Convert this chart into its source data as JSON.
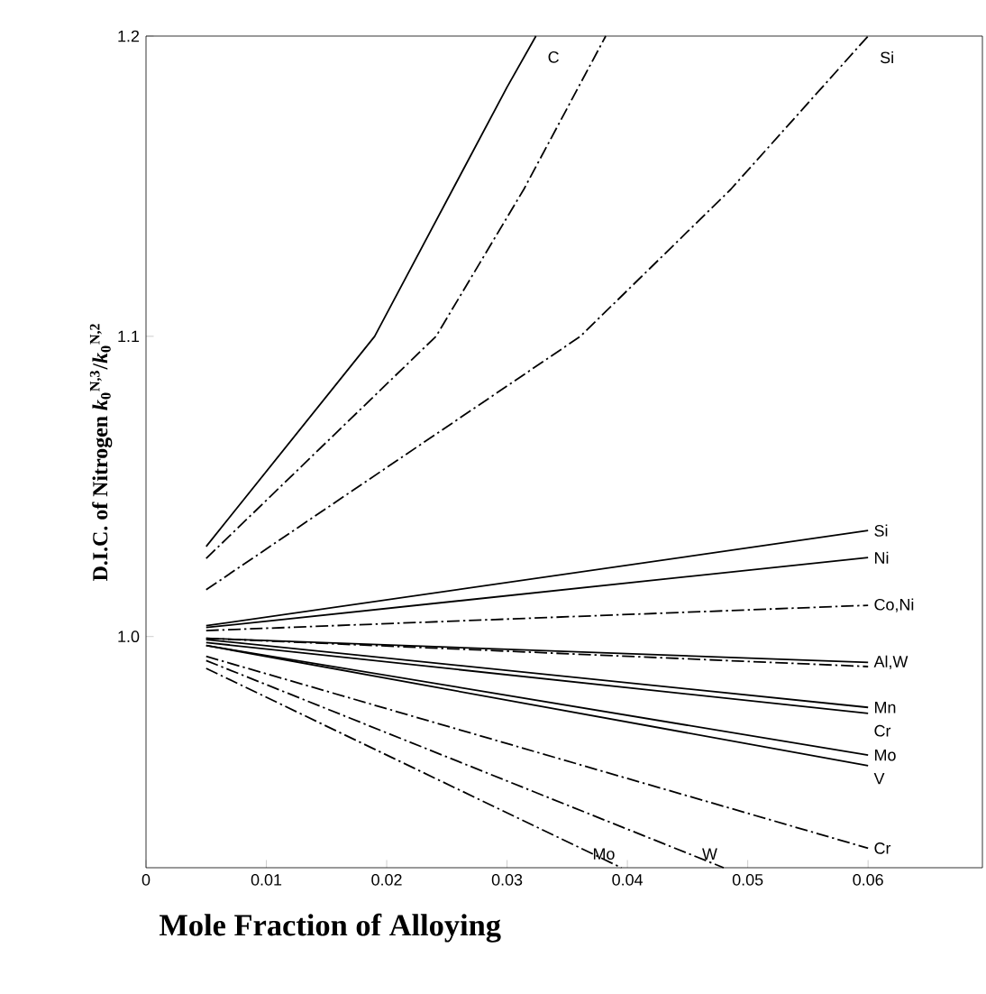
{
  "chart_data": {
    "type": "line",
    "xlabel": "Mole Fraction of Alloying",
    "ylabel": "D.I.C. of Nitrogen   *k*$_{0}$$^{N,3}$/*k*$_{0}$$^{N,2}$",
    "xlim": [
      0,
      0.0695
    ],
    "ylim": [
      0.923,
      1.2
    ],
    "xticks": [
      0,
      0.01,
      0.02,
      0.03,
      0.04,
      0.05,
      0.06
    ],
    "yticks": [
      {
        "value": 1.0,
        "label": "1.0"
      },
      1.1,
      1.2
    ],
    "grid": false,
    "marker": "none",
    "series": [
      {
        "name": "C",
        "color": "#000000",
        "line_style": "solid",
        "x": [
          0.005,
          0.019,
          0.03,
          0.0324
        ],
        "values": [
          1.03,
          1.1,
          1.183,
          1.2
        ]
      },
      {
        "color": "#000000",
        "line_style": "dashdot",
        "x": [
          0.005,
          0.0241,
          0.0314,
          0.0382
        ],
        "values": [
          1.026,
          1.1,
          1.149,
          1.2
        ]
      },
      {
        "name": "Si",
        "color": "#000000",
        "line_style": "dashdot",
        "x": [
          0.005,
          0.0361,
          0.0486,
          0.06
        ],
        "values": [
          1.0156,
          1.1,
          1.149,
          1.2
        ]
      },
      {
        "name": "Si",
        "color": "#000000",
        "line_style": "solid",
        "x": [
          0.005,
          0.06
        ],
        "values": [
          1.0036,
          1.0353
        ]
      },
      {
        "name": "Ni",
        "color": "#000000",
        "line_style": "solid",
        "x": [
          0.005,
          0.06
        ],
        "values": [
          1.003,
          1.0263
        ]
      },
      {
        "name": "Co,Ni",
        "color": "#000000",
        "line_style": "dashdot",
        "x": [
          0.005,
          0.06
        ],
        "values": [
          1.002,
          1.0104
        ]
      },
      {
        "name": "Al,W",
        "color": "#000000",
        "line_style": "solid",
        "x": [
          0.005,
          0.06
        ],
        "values": [
          0.9994,
          0.9914
        ]
      },
      {
        "color": "#000000",
        "line_style": "dashdot",
        "x": [
          0.005,
          0.06
        ],
        "values": [
          0.9994,
          0.99
        ]
      },
      {
        "name": "Mn",
        "color": "#000000",
        "line_style": "solid",
        "x": [
          0.005,
          0.06
        ],
        "values": [
          0.999,
          0.9764
        ]
      },
      {
        "name": "Cr",
        "color": "#000000",
        "line_style": "solid",
        "x": [
          0.005,
          0.06
        ],
        "values": [
          0.998,
          0.9744
        ]
      },
      {
        "name": "Mo",
        "color": "#000000",
        "line_style": "solid",
        "x": [
          0.005,
          0.06
        ],
        "values": [
          0.997,
          0.9605
        ]
      },
      {
        "name": "V",
        "color": "#000000",
        "line_style": "solid",
        "x": [
          0.005,
          0.06
        ],
        "values": [
          0.997,
          0.957
        ]
      },
      {
        "name": "Cr",
        "color": "#000000",
        "line_style": "dashdot",
        "x": [
          0.005,
          0.06
        ],
        "values": [
          0.9934,
          0.9295
        ]
      },
      {
        "name": "W",
        "color": "#000000",
        "line_style": "dashdot",
        "x": [
          0.005,
          0.048
        ],
        "values": [
          0.992,
          0.923
        ]
      },
      {
        "name": "Mo",
        "color": "#000000",
        "line_style": "dashdot",
        "x": [
          0.005,
          0.0395
        ],
        "values": [
          0.9894,
          0.923
        ]
      }
    ]
  }
}
